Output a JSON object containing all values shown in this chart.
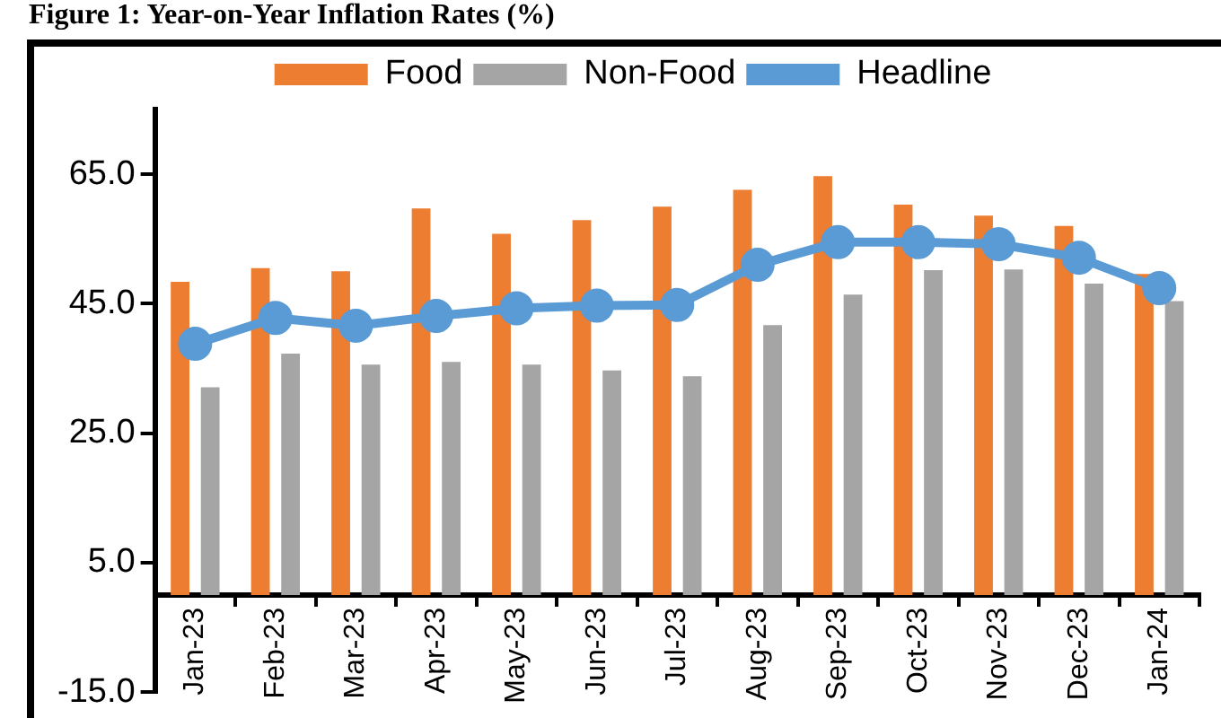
{
  "chart_data": {
    "type": "bar",
    "title": "Figure 1: Year-on-Year Inflation Rates (%)",
    "categories": [
      "Jan-23",
      "Feb-23",
      "Mar-23",
      "Apr-23",
      "May-23",
      "Jun-23",
      "Jul-23",
      "Aug-23",
      "Sep-23",
      "Oct-23",
      "Nov-23",
      "Dec-23",
      "Jan-24"
    ],
    "series": [
      {
        "name": "Food",
        "color": "#ed7d31",
        "values": [
          48.4,
          50.5,
          50.0,
          59.7,
          55.8,
          57.9,
          60.0,
          62.6,
          64.7,
          60.3,
          58.6,
          57.0,
          49.6
        ]
      },
      {
        "name": "Non-Food",
        "color": "#a5a5a5",
        "values": [
          32.1,
          37.3,
          35.6,
          36.0,
          35.6,
          34.7,
          33.8,
          41.7,
          46.4,
          50.2,
          50.3,
          48.1,
          45.4
        ]
      },
      {
        "name": "Headline",
        "type": "line",
        "color": "#5b9bd5",
        "values": [
          38.8,
          42.8,
          41.6,
          43.1,
          44.3,
          44.7,
          44.8,
          51.0,
          54.5,
          54.5,
          54.2,
          52.1,
          47.4
        ]
      }
    ],
    "ylim": [
      -15,
      75
    ],
    "yticks": [
      {
        "value": -15,
        "label": "-15.0"
      },
      {
        "value": 5,
        "label": "5.0"
      },
      {
        "value": 25,
        "label": "25.0"
      },
      {
        "value": 45,
        "label": "45.0"
      },
      {
        "value": 65,
        "label": "65.0"
      }
    ],
    "grid": false,
    "legend": "top",
    "marker": "circle",
    "line_style": "solid"
  }
}
